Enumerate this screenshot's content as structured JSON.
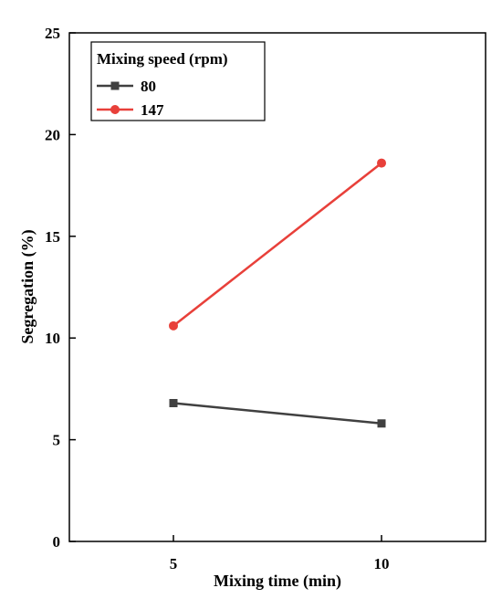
{
  "chart_data": {
    "type": "line",
    "xlabel": "Mixing time (min)",
    "ylabel": "Segregation (%)",
    "x": [
      5,
      10
    ],
    "x_ticks": [
      "5",
      "10"
    ],
    "xlim": [
      2.5,
      12.5
    ],
    "ylim": [
      0,
      25
    ],
    "y_ticks": [
      "0",
      "5",
      "10",
      "15",
      "20",
      "25"
    ],
    "grid": false,
    "legend": {
      "title": "Mixing speed (rpm)",
      "placement": "top-left"
    },
    "series": [
      {
        "name": "80",
        "values": [
          6.8,
          5.8
        ],
        "color": "#404040",
        "marker": "square"
      },
      {
        "name": "147",
        "values": [
          10.6,
          18.6
        ],
        "color": "#e8403a",
        "marker": "circle"
      }
    ]
  }
}
